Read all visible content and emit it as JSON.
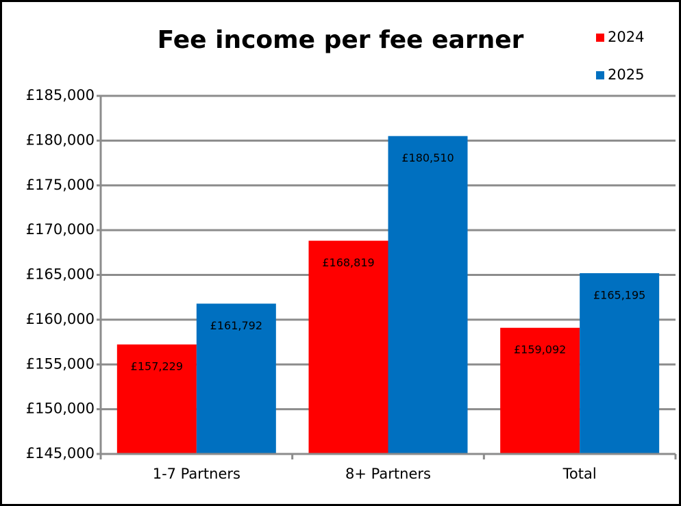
{
  "chart_data": {
    "type": "bar",
    "title": "Fee income per fee earner",
    "categories": [
      "1-7 Partners",
      "8+ Partners",
      "Total"
    ],
    "series": [
      {
        "name": "2024",
        "color": "#ff0000",
        "values": [
          157229,
          168819,
          159092
        ],
        "value_labels": [
          "£157,229",
          "£168,819",
          "£159,092"
        ]
      },
      {
        "name": "2025",
        "color": "#0070c0",
        "values": [
          161792,
          180510,
          165195
        ],
        "value_labels": [
          "£161,792",
          "£180,510",
          "£165,195"
        ]
      }
    ],
    "ylim": [
      145000,
      185000
    ],
    "yticks": [
      {
        "value": 145000,
        "label": "£145,000"
      },
      {
        "value": 150000,
        "label": "£150,000"
      },
      {
        "value": 155000,
        "label": "£155,000"
      },
      {
        "value": 160000,
        "label": "£160,000"
      },
      {
        "value": 165000,
        "label": "£165,000"
      },
      {
        "value": 170000,
        "label": "£170,000"
      },
      {
        "value": 175000,
        "label": "£175,000"
      },
      {
        "value": 180000,
        "label": "£180,000"
      },
      {
        "value": 185000,
        "label": "£185,000"
      }
    ],
    "grid": true,
    "legend": "top-right"
  }
}
